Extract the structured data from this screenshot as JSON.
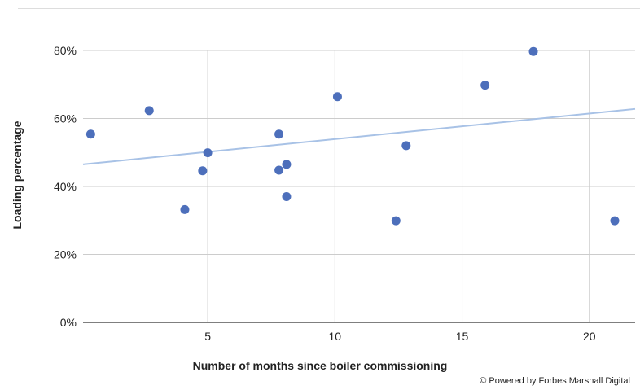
{
  "chart_data": {
    "type": "scatter",
    "xlabel": "Number of months since boiler commissioning",
    "ylabel": "Loading percentage",
    "xlim": [
      0.1,
      21.8
    ],
    "ylim": [
      0,
      80
    ],
    "x_ticks": [
      5,
      10,
      15,
      20
    ],
    "y_ticks": [
      0,
      20,
      40,
      60,
      80
    ],
    "y_tick_labels": [
      "0%",
      "20%",
      "40%",
      "60%",
      "80%"
    ],
    "grid": true,
    "legend": "none",
    "points": [
      {
        "x": 0.4,
        "y": 55.4
      },
      {
        "x": 2.7,
        "y": 62.3
      },
      {
        "x": 4.1,
        "y": 33.2
      },
      {
        "x": 4.8,
        "y": 44.6
      },
      {
        "x": 5.0,
        "y": 49.9
      },
      {
        "x": 7.8,
        "y": 55.4
      },
      {
        "x": 7.8,
        "y": 44.8
      },
      {
        "x": 8.1,
        "y": 46.5
      },
      {
        "x": 8.1,
        "y": 37.0
      },
      {
        "x": 10.1,
        "y": 66.4
      },
      {
        "x": 12.4,
        "y": 29.9
      },
      {
        "x": 12.8,
        "y": 52.0
      },
      {
        "x": 15.9,
        "y": 69.8
      },
      {
        "x": 17.8,
        "y": 79.7
      },
      {
        "x": 21.0,
        "y": 29.9
      }
    ],
    "trendline": {
      "x": [
        0.1,
        21.8
      ],
      "y": [
        46.5,
        62.8
      ]
    },
    "colors": {
      "points": "#4d6fbb",
      "trendline": "#a8c2e6",
      "grid": "#cccccc",
      "axis": "#333333"
    }
  },
  "credit": "© Powered by Forbes Marshall Digital"
}
